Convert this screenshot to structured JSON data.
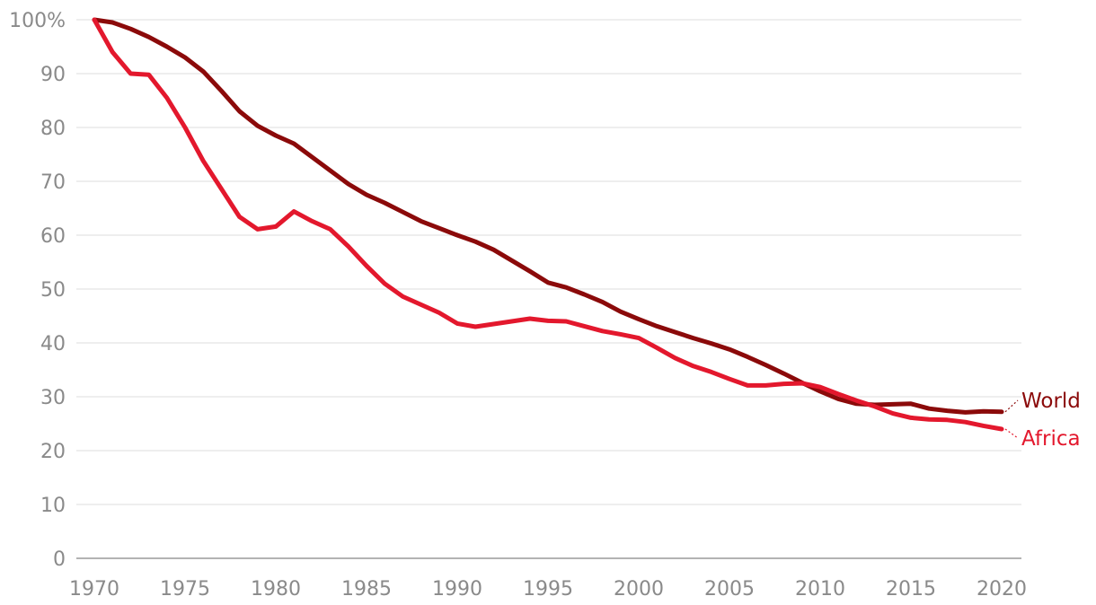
{
  "chart_data": {
    "type": "line",
    "title": "",
    "xlabel": "",
    "ylabel": "",
    "xlim": [
      1970,
      2020
    ],
    "ylim": [
      0,
      100
    ],
    "y_ticks": [
      "0",
      "10",
      "20",
      "30",
      "40",
      "50",
      "60",
      "70",
      "80",
      "90",
      "100%"
    ],
    "x_ticks": [
      "1970",
      "1975",
      "1980",
      "1985",
      "1990",
      "1995",
      "2000",
      "2005",
      "2010",
      "2015",
      "2020"
    ],
    "grid": true,
    "legend": "direct labels at line ends",
    "x": [
      1970,
      1971,
      1972,
      1973,
      1974,
      1975,
      1976,
      1977,
      1978,
      1979,
      1980,
      1981,
      1982,
      1983,
      1984,
      1985,
      1986,
      1987,
      1988,
      1989,
      1990,
      1991,
      1992,
      1993,
      1994,
      1995,
      1996,
      1997,
      1998,
      1999,
      2000,
      2001,
      2002,
      2003,
      2004,
      2005,
      2006,
      2007,
      2008,
      2009,
      2010,
      2011,
      2012,
      2013,
      2014,
      2015,
      2016,
      2017,
      2018,
      2019,
      2020
    ],
    "series": [
      {
        "name": "World",
        "color": "#8b0a0a",
        "values": [
          100,
          99.5,
          98.3,
          96.8,
          95,
          93,
          90.4,
          86.8,
          83,
          80.3,
          78.5,
          77,
          74.5,
          72,
          69.5,
          67.5,
          66,
          64.3,
          62.6,
          61.3,
          60,
          58.8,
          57.3,
          55.3,
          53.3,
          51.2,
          50.3,
          49,
          47.6,
          45.8,
          44.4,
          43.1,
          42,
          40.9,
          39.9,
          38.8,
          37.4,
          35.9,
          34.3,
          32.6,
          31,
          29.6,
          28.7,
          28.5,
          28.6,
          28.7,
          27.8,
          27.4,
          27.1,
          27.3,
          27.2
        ]
      },
      {
        "name": "Africa",
        "color": "#e3182d",
        "values": [
          100,
          94,
          90,
          89.8,
          85.5,
          80,
          73.8,
          68.6,
          63.4,
          61.1,
          61.6,
          64.4,
          62.6,
          61.1,
          57.9,
          54.3,
          51,
          48.6,
          47.1,
          45.6,
          43.6,
          43,
          43.5,
          44,
          44.5,
          44.1,
          44,
          43.1,
          42.2,
          41.6,
          40.9,
          39.1,
          37.2,
          35.7,
          34.6,
          33.3,
          32.1,
          32.1,
          32.4,
          32.5,
          31.8,
          30.5,
          29.3,
          28.2,
          26.9,
          26.1,
          25.8,
          25.7,
          25.3,
          24.6,
          24
        ]
      }
    ]
  }
}
